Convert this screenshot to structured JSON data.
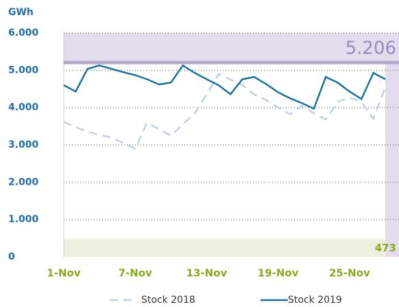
{
  "chart_data": {
    "type": "line",
    "y_label": "GWh",
    "categories": [
      "1-Nov",
      null,
      null,
      null,
      null,
      null,
      "7-Nov",
      null,
      null,
      null,
      null,
      null,
      "13-Nov",
      null,
      null,
      null,
      null,
      null,
      "19-Nov",
      null,
      null,
      null,
      null,
      null,
      "25-Nov",
      null,
      null,
      null
    ],
    "series": [
      {
        "name": "Stock 2018",
        "color": "#bcd0e6",
        "dashed": true,
        "values": [
          3620,
          3480,
          3350,
          3270,
          3200,
          3050,
          2900,
          3600,
          3420,
          3250,
          3550,
          3850,
          4350,
          4900,
          4750,
          4600,
          4350,
          4200,
          4000,
          3820,
          4050,
          3850,
          3680,
          4150,
          4270,
          4150,
          3700,
          4550
        ]
      },
      {
        "name": "Stock 2019",
        "color": "#17739c",
        "dashed": false,
        "values": [
          4600,
          4430,
          5040,
          5130,
          5040,
          4950,
          4870,
          4760,
          4620,
          4670,
          5130,
          4930,
          4760,
          4600,
          4360,
          4760,
          4820,
          4630,
          4410,
          4250,
          4120,
          3970,
          4820,
          4670,
          4430,
          4230,
          4930,
          4760
        ]
      }
    ],
    "annotations": [
      {
        "value": 5206,
        "label": "5.206"
      },
      {
        "value": 473,
        "label": "473"
      }
    ],
    "ylim": [
      0,
      6000
    ],
    "yticks": [
      0,
      {
        "value": 1000,
        "label": "1.000"
      },
      {
        "value": 2000,
        "label": "2.000"
      },
      {
        "value": 3000,
        "label": "3.000"
      },
      {
        "value": 4000,
        "label": "4.000"
      },
      {
        "value": 5000,
        "label": "5.000"
      },
      {
        "value": 6000,
        "label": "6.000"
      }
    ],
    "grid": true
  }
}
